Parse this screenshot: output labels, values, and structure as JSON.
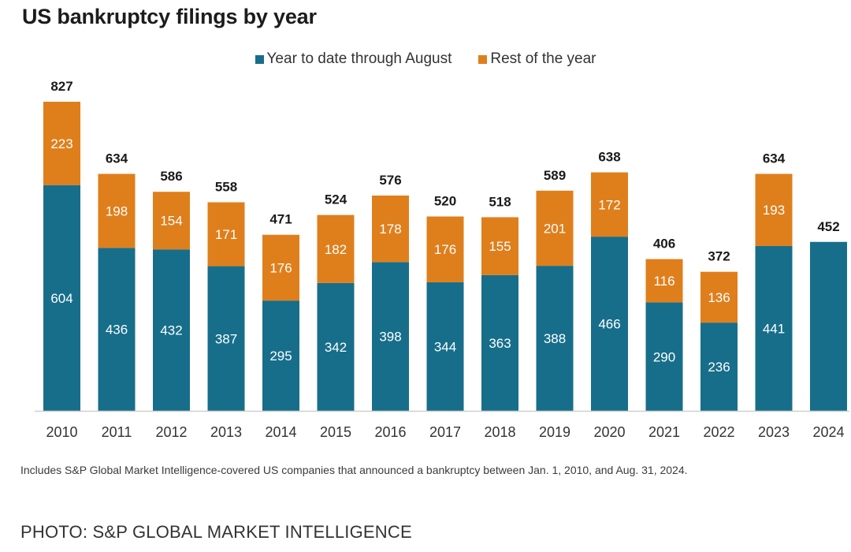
{
  "colors": {
    "ytd": "#176e8a",
    "rest": "#df7f1c",
    "axis": "#cfcfcf"
  },
  "chart_data": {
    "type": "bar",
    "stacked": true,
    "title": "US bankruptcy filings by year",
    "categories": [
      "2010",
      "2011",
      "2012",
      "2013",
      "2014",
      "2015",
      "2016",
      "2017",
      "2018",
      "2019",
      "2020",
      "2021",
      "2022",
      "2023",
      "2024"
    ],
    "series": [
      {
        "name": "Year to date through August",
        "values": [
          604,
          436,
          432,
          387,
          295,
          342,
          398,
          344,
          363,
          388,
          466,
          290,
          236,
          441,
          452
        ]
      },
      {
        "name": "Rest of the year",
        "values": [
          223,
          198,
          154,
          171,
          176,
          182,
          178,
          176,
          155,
          201,
          172,
          116,
          136,
          193,
          0
        ]
      }
    ],
    "totals": [
      827,
      634,
      586,
      558,
      471,
      524,
      576,
      520,
      518,
      589,
      638,
      406,
      372,
      634,
      452
    ],
    "ylim": [
      0,
      827
    ],
    "grid": false,
    "legend_position": "top-center"
  },
  "footnote": "Includes S&P Global Market Intelligence-covered US companies that announced a bankruptcy between Jan. 1, 2010, and Aug. 31, 2024.",
  "credit": "PHOTO: S&P GLOBAL MARKET INTELLIGENCE"
}
